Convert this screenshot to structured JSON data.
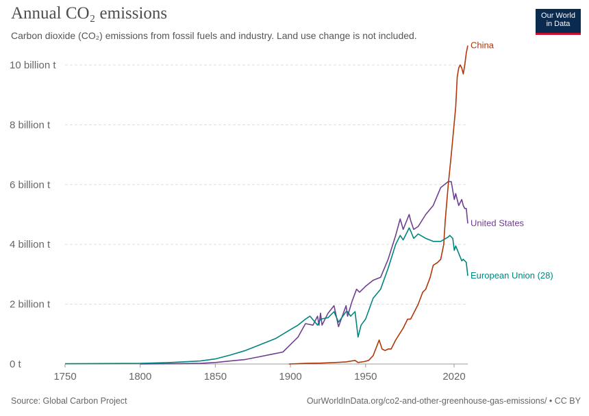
{
  "header": {
    "title": "Annual CO₂ emissions",
    "subtitle": "Carbon dioxide (CO₂) emissions from fossil fuels and industry. Land use change is not included."
  },
  "logo": {
    "line1": "Our World",
    "line2": "in Data"
  },
  "footer": {
    "source": "Source: Global Carbon Project",
    "link": "OurWorldInData.org/co2-and-other-greenhouse-gas-emissions/ • CC BY"
  },
  "chart_data": {
    "type": "line",
    "ylim": [
      0,
      10.8
    ],
    "xlim": [
      1750,
      2018
    ],
    "yticks": [
      0,
      2,
      4,
      6,
      8,
      10
    ],
    "ytick_labels": [
      "0 t",
      "2 billion t",
      "4 billion t",
      "6 billion t",
      "8 billion t",
      "10 billion t"
    ],
    "xticks": [
      1750,
      1800,
      1850,
      1900,
      1950,
      2020
    ],
    "xtick_labels": [
      "1750",
      "1800",
      "1850",
      "1900",
      "1950",
      "2020"
    ],
    "grid": "horizontal-dashed",
    "legend": "inline-end-labels",
    "series": [
      {
        "name": "China",
        "color": "#b13507",
        "x": [
          1899,
          1910,
          1920,
          1930,
          1937,
          1943,
          1945,
          1949,
          1952,
          1955,
          1959,
          1961,
          1963,
          1965,
          1967,
          1970,
          1975,
          1978,
          1980,
          1985,
          1988,
          1990,
          1993,
          1995,
          1998,
          2000,
          2002,
          2003,
          2005,
          2007,
          2010,
          2011,
          2012,
          2013,
          2014,
          2015,
          2016,
          2017,
          2018
        ],
        "y": [
          0.0,
          0.02,
          0.03,
          0.05,
          0.07,
          0.12,
          0.05,
          0.08,
          0.12,
          0.28,
          0.8,
          0.5,
          0.45,
          0.5,
          0.5,
          0.8,
          1.2,
          1.5,
          1.5,
          2.0,
          2.4,
          2.5,
          2.9,
          3.3,
          3.4,
          3.5,
          4.0,
          4.8,
          6.0,
          7.0,
          8.6,
          9.6,
          9.9,
          10.0,
          9.9,
          9.7,
          10.0,
          10.4,
          10.65
        ]
      },
      {
        "name": "United States",
        "color": "#6d3e91",
        "x": [
          1800,
          1820,
          1840,
          1850,
          1860,
          1870,
          1880,
          1890,
          1895,
          1900,
          1905,
          1910,
          1915,
          1918,
          1919,
          1920,
          1921,
          1925,
          1929,
          1932,
          1937,
          1938,
          1941,
          1944,
          1946,
          1950,
          1955,
          1960,
          1965,
          1970,
          1973,
          1975,
          1979,
          1980,
          1982,
          1985,
          1990,
          1995,
          2000,
          2005,
          2007,
          2009,
          2010,
          2012,
          2014,
          2015,
          2016,
          2017,
          2018
        ],
        "y": [
          0.0,
          0.01,
          0.02,
          0.05,
          0.1,
          0.15,
          0.25,
          0.35,
          0.4,
          0.65,
          0.9,
          1.35,
          1.3,
          1.6,
          1.3,
          1.7,
          1.3,
          1.7,
          1.95,
          1.25,
          1.95,
          1.6,
          2.1,
          2.5,
          2.4,
          2.6,
          2.8,
          2.9,
          3.5,
          4.3,
          4.85,
          4.5,
          5.0,
          4.8,
          4.5,
          4.6,
          5.0,
          5.3,
          5.9,
          6.1,
          6.1,
          5.5,
          5.7,
          5.3,
          5.5,
          5.3,
          5.2,
          5.2,
          4.7
        ]
      },
      {
        "name": "European Union (28)",
        "color": "#00847e",
        "x": [
          1750,
          1800,
          1820,
          1840,
          1850,
          1860,
          1870,
          1880,
          1890,
          1900,
          1905,
          1910,
          1913,
          1918,
          1920,
          1925,
          1929,
          1932,
          1937,
          1938,
          1940,
          1943,
          1945,
          1947,
          1950,
          1955,
          1960,
          1965,
          1970,
          1973,
          1975,
          1979,
          1980,
          1982,
          1985,
          1990,
          1995,
          2000,
          2005,
          2006,
          2008,
          2009,
          2010,
          2012,
          2014,
          2015,
          2016,
          2017,
          2018
        ],
        "y": [
          0.01,
          0.02,
          0.05,
          0.1,
          0.17,
          0.3,
          0.45,
          0.65,
          0.85,
          1.15,
          1.3,
          1.5,
          1.6,
          1.3,
          1.5,
          1.55,
          1.75,
          1.4,
          1.75,
          1.75,
          1.6,
          1.75,
          0.9,
          1.3,
          1.5,
          2.2,
          2.5,
          3.2,
          4.0,
          4.3,
          4.15,
          4.55,
          4.45,
          4.2,
          4.35,
          4.2,
          4.1,
          4.1,
          4.25,
          4.3,
          4.2,
          3.8,
          3.95,
          3.7,
          3.45,
          3.5,
          3.45,
          3.4,
          2.95
        ]
      }
    ]
  }
}
